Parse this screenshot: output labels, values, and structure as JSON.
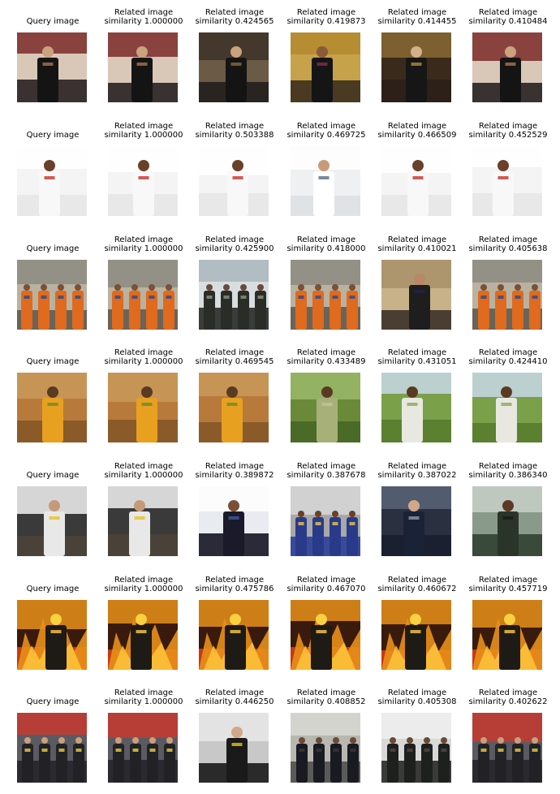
{
  "rows": [
    {
      "query_label": "Query image",
      "query_subject": "judge",
      "related": [
        {
          "label": "Related image",
          "similarity": "similarity 1.000000",
          "subject": "judge"
        },
        {
          "label": "Related image",
          "similarity": "similarity 0.424565",
          "subject": "courtroom"
        },
        {
          "label": "Related image",
          "similarity": "similarity 0.419873",
          "subject": "graduation"
        },
        {
          "label": "Related image",
          "similarity": "similarity 0.414455",
          "subject": "portrait"
        },
        {
          "label": "Related image",
          "similarity": "similarity 0.410484",
          "subject": "judge"
        }
      ]
    },
    {
      "query_label": "Query image",
      "query_subject": "chef",
      "related": [
        {
          "label": "Related image",
          "similarity": "similarity 1.000000",
          "subject": "chef"
        },
        {
          "label": "Related image",
          "similarity": "similarity 0.503388",
          "subject": "chef"
        },
        {
          "label": "Related image",
          "similarity": "similarity 0.469725",
          "subject": "doctor"
        },
        {
          "label": "Related image",
          "similarity": "similarity 0.466509",
          "subject": "chef"
        },
        {
          "label": "Related image",
          "similarity": "similarity 0.452529",
          "subject": "chef"
        }
      ]
    },
    {
      "query_label": "Query image",
      "query_subject": "workers",
      "related": [
        {
          "label": "Related image",
          "similarity": "similarity 1.000000",
          "subject": "workers"
        },
        {
          "label": "Related image",
          "similarity": "similarity 0.425900",
          "subject": "crowd"
        },
        {
          "label": "Related image",
          "similarity": "similarity 0.418000",
          "subject": "workers"
        },
        {
          "label": "Related image",
          "similarity": "similarity 0.410021",
          "subject": "officer"
        },
        {
          "label": "Related image",
          "similarity": "similarity 0.405638",
          "subject": "workers"
        }
      ]
    },
    {
      "query_label": "Query image",
      "query_subject": "farmer",
      "related": [
        {
          "label": "Related image",
          "similarity": "similarity 1.000000",
          "subject": "farmer"
        },
        {
          "label": "Related image",
          "similarity": "similarity 0.469545",
          "subject": "farmer"
        },
        {
          "label": "Related image",
          "similarity": "similarity 0.433489",
          "subject": "cornfield"
        },
        {
          "label": "Related image",
          "similarity": "similarity 0.431051",
          "subject": "field"
        },
        {
          "label": "Related image",
          "similarity": "similarity 0.424410",
          "subject": "field"
        }
      ]
    },
    {
      "query_label": "Query image",
      "query_subject": "mechanic",
      "related": [
        {
          "label": "Related image",
          "similarity": "similarity 1.000000",
          "subject": "mechanic"
        },
        {
          "label": "Related image",
          "similarity": "similarity 0.389872",
          "subject": "aircraft"
        },
        {
          "label": "Related image",
          "similarity": "similarity 0.387678",
          "subject": "team"
        },
        {
          "label": "Related image",
          "similarity": "similarity 0.387022",
          "subject": "technician"
        },
        {
          "label": "Related image",
          "similarity": "similarity 0.386340",
          "subject": "soldier"
        }
      ]
    },
    {
      "query_label": "Query image",
      "query_subject": "fire",
      "related": [
        {
          "label": "Related image",
          "similarity": "similarity 1.000000",
          "subject": "fire"
        },
        {
          "label": "Related image",
          "similarity": "similarity 0.475786",
          "subject": "fire"
        },
        {
          "label": "Related image",
          "similarity": "similarity 0.467070",
          "subject": "fire"
        },
        {
          "label": "Related image",
          "similarity": "similarity 0.460672",
          "subject": "fire"
        },
        {
          "label": "Related image",
          "similarity": "similarity 0.457719",
          "subject": "fire"
        }
      ]
    },
    {
      "query_label": "Query image",
      "query_subject": "firefighters",
      "related": [
        {
          "label": "Related image",
          "similarity": "similarity 1.000000",
          "subject": "firefighters"
        },
        {
          "label": "Related image",
          "similarity": "similarity 0.446250",
          "subject": "firefighter"
        },
        {
          "label": "Related image",
          "similarity": "similarity 0.408852",
          "subject": "police"
        },
        {
          "label": "Related image",
          "similarity": "similarity 0.405308",
          "subject": "soldiers"
        },
        {
          "label": "Related image",
          "similarity": "similarity 0.402622",
          "subject": "firefighters"
        }
      ]
    }
  ]
}
